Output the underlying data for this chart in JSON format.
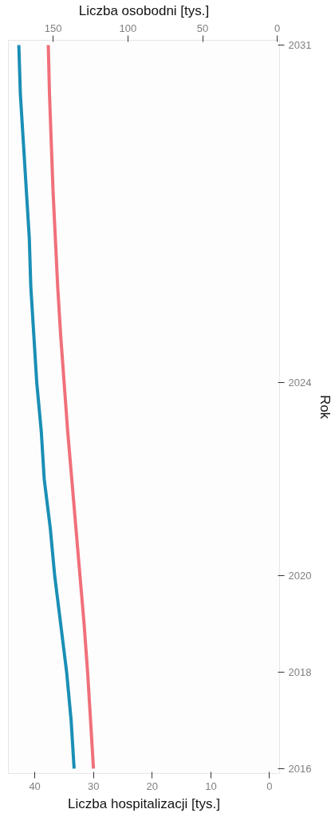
{
  "chart_data": {
    "type": "line",
    "orientation": "horizontal",
    "ylabel": "Rok",
    "xlabel": "Liczba hospitalizacji [tys.]",
    "x2label": "Liczba osobodni [tys.]",
    "x": [
      2016,
      2017,
      2018,
      2019,
      2020,
      2021,
      2022,
      2023,
      2024,
      2025,
      2026,
      2027,
      2028,
      2029,
      2030,
      2031
    ],
    "ylim": [
      2015.9,
      2031.1
    ],
    "yticks": [
      2016,
      2018,
      2020,
      2024,
      2031
    ],
    "xlim": [
      44.5,
      -1.7
    ],
    "xticks": [
      0,
      10,
      20,
      30,
      40
    ],
    "x2lim": [
      180,
      -1.5
    ],
    "x2ticks": [
      0,
      50,
      100,
      150
    ],
    "series": [
      {
        "color": "#f0707a",
        "values": [
          30.0,
          30.5,
          31.0,
          31.6,
          32.3,
          33.0,
          33.7,
          34.4,
          35.0,
          35.6,
          36.1,
          36.5,
          36.9,
          37.2,
          37.5,
          37.7
        ]
      },
      {
        "color": "#1a8fb5",
        "axis": "x2",
        "values": [
          136,
          138,
          141,
          145,
          149,
          152,
          156,
          158,
          161,
          163,
          165,
          166,
          168,
          170,
          172,
          173
        ]
      }
    ],
    "grid": false,
    "line_style": "solid",
    "marker": "none"
  }
}
